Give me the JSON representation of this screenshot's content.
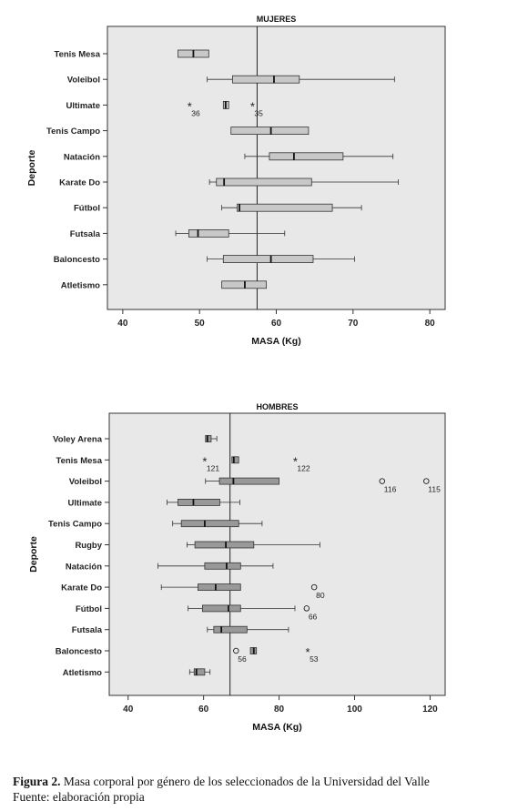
{
  "chart_data": [
    {
      "type": "boxplot",
      "title": "MUJERES",
      "xlabel": "MASA (Kg)",
      "ylabel": "Deporte",
      "xlim": [
        38,
        82
      ],
      "xticks": [
        40,
        50,
        60,
        70,
        80
      ],
      "reference_line": 57.5,
      "grid": false,
      "box_color": "#c8c8c8",
      "categories": [
        "Tenis Mesa",
        "Voleibol",
        "Ultimate",
        "Tenis Campo",
        "Natación",
        "Karate Do",
        "Fútbol",
        "Futsala",
        "Baloncesto",
        "Atletismo"
      ],
      "boxes": [
        {
          "category": "Tenis Mesa",
          "min": 47.2,
          "q1": 47.2,
          "median": 49.2,
          "q3": 51.2,
          "max": 51.2
        },
        {
          "category": "Voleibol",
          "min": 51,
          "q1": 54.3,
          "median": 59.7,
          "q3": 63,
          "max": 75.4
        },
        {
          "category": "Ultimate",
          "min": 53.1,
          "q1": 53.1,
          "median": 53.4,
          "q3": 53.8,
          "max": 53.8
        },
        {
          "category": "Tenis Campo",
          "min": 54.1,
          "q1": 54.1,
          "median": 59.3,
          "q3": 64.2,
          "max": 64.2
        },
        {
          "category": "Natación",
          "min": 55.9,
          "q1": 59.1,
          "median": 62.3,
          "q3": 68.7,
          "max": 75.2
        },
        {
          "category": "Karate Do",
          "min": 51.3,
          "q1": 52.2,
          "median": 53.2,
          "q3": 64.6,
          "max": 75.9
        },
        {
          "category": "Fútbol",
          "min": 52.9,
          "q1": 54.9,
          "median": 55.2,
          "q3": 67.3,
          "max": 71.1
        },
        {
          "category": "Futsala",
          "min": 46.9,
          "q1": 48.6,
          "median": 49.8,
          "q3": 53.8,
          "max": 61.1
        },
        {
          "category": "Baloncesto",
          "min": 51,
          "q1": 53.1,
          "median": 59.3,
          "q3": 64.8,
          "max": 70.2
        },
        {
          "category": "Atletismo",
          "min": 52.9,
          "q1": 52.9,
          "median": 55.9,
          "q3": 58.7,
          "max": 58.7
        }
      ],
      "outliers": [
        {
          "category": "Ultimate",
          "value": 48.7,
          "marker": "*",
          "label": "36"
        },
        {
          "category": "Ultimate",
          "value": 56.9,
          "marker": "*",
          "label": "35"
        }
      ]
    },
    {
      "type": "boxplot",
      "title": "HOMBRES",
      "xlabel": "MASA (Kg)",
      "ylabel": "Deporte",
      "xlim": [
        35,
        124
      ],
      "xticks": [
        40,
        60,
        80,
        100,
        120
      ],
      "reference_line": 67,
      "grid": false,
      "box_color": "#999999",
      "categories": [
        "Voley Arena",
        "Tenis Mesa",
        "Voleibol",
        "Ultimate",
        "Tenis Campo",
        "Rugby",
        "Natación",
        "Karate Do",
        "Fútbol",
        "Futsala",
        "Baloncesto",
        "Atletismo"
      ],
      "boxes": [
        {
          "category": "Voley Arena",
          "min": 60.5,
          "q1": 60.5,
          "median": 61,
          "q3": 62,
          "max": 63.5
        },
        {
          "category": "Tenis Mesa",
          "min": 67.5,
          "q1": 67.5,
          "median": 68,
          "q3": 69.3,
          "max": 69.3
        },
        {
          "category": "Voleibol",
          "min": 60.5,
          "q1": 64.2,
          "median": 67.9,
          "q3": 80,
          "max": 80
        },
        {
          "category": "Ultimate",
          "min": 50.3,
          "q1": 53.2,
          "median": 57.3,
          "q3": 64.3,
          "max": 69.6
        },
        {
          "category": "Tenis Campo",
          "min": 51.8,
          "q1": 54.1,
          "median": 60.3,
          "q3": 69.3,
          "max": 75.5
        },
        {
          "category": "Rugby",
          "min": 55.6,
          "q1": 57.7,
          "median": 65.9,
          "q3": 73.3,
          "max": 90.8
        },
        {
          "category": "Natación",
          "min": 47.9,
          "q1": 60.3,
          "median": 66.1,
          "q3": 69.8,
          "max": 78.4
        },
        {
          "category": "Karate Do",
          "min": 48.8,
          "q1": 58.5,
          "median": 63.2,
          "q3": 69.8,
          "max": 69.8
        },
        {
          "category": "Fútbol",
          "min": 55.9,
          "q1": 59.7,
          "median": 66.6,
          "q3": 69.8,
          "max": 84.2
        },
        {
          "category": "Futsala",
          "min": 61,
          "q1": 62.7,
          "median": 64.7,
          "q3": 71.5,
          "max": 82.5
        },
        {
          "category": "Baloncesto",
          "min": 72.4,
          "q1": 72.4,
          "median": 73.3,
          "q3": 74,
          "max": 74
        },
        {
          "category": "Atletismo",
          "min": 56.3,
          "q1": 57.5,
          "median": 58.1,
          "q3": 60.3,
          "max": 61.7
        }
      ],
      "outliers": [
        {
          "category": "Tenis Mesa",
          "value": 60.3,
          "marker": "*",
          "label": "121"
        },
        {
          "category": "Tenis Mesa",
          "value": 84.3,
          "marker": "*",
          "label": "122"
        },
        {
          "category": "Voleibol",
          "value": 107.3,
          "marker": "o",
          "label": "116"
        },
        {
          "category": "Voleibol",
          "value": 119,
          "marker": "o",
          "label": "115"
        },
        {
          "category": "Karate Do",
          "value": 89.3,
          "marker": "o",
          "label": "80"
        },
        {
          "category": "Fútbol",
          "value": 87.3,
          "marker": "o",
          "label": "66"
        },
        {
          "category": "Baloncesto",
          "value": 68.6,
          "marker": "o",
          "label": "56"
        },
        {
          "category": "Baloncesto",
          "value": 87.6,
          "marker": "*",
          "label": "53"
        }
      ]
    }
  ],
  "caption": {
    "figure_label": "Figura 2.",
    "text": " Masa corporal por género de los seleccionados de la Universidad del Valle",
    "source": "Fuente: elaboración propia"
  }
}
